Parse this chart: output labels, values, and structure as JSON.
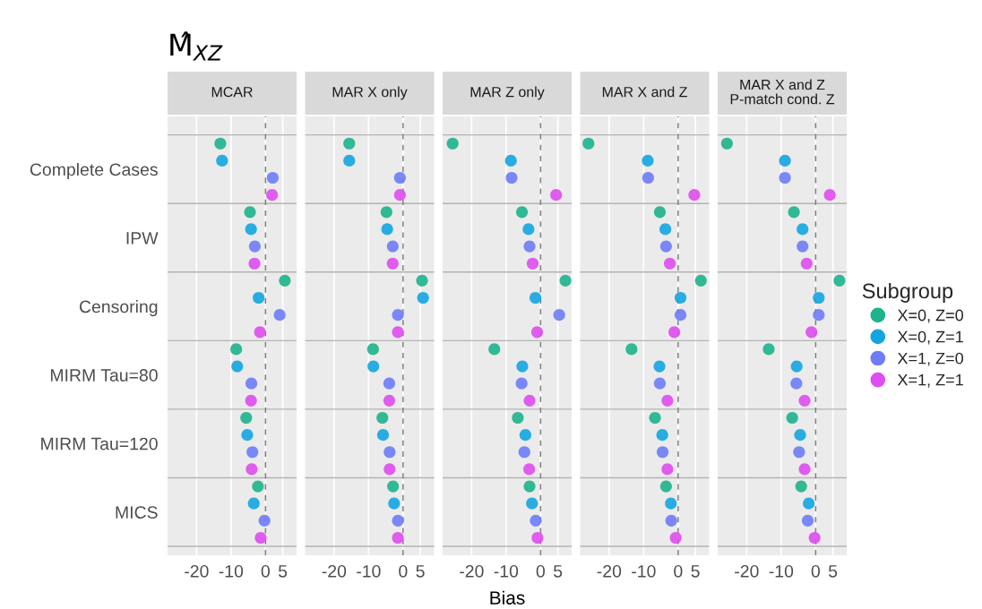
{
  "chart_data": [
    {
      "type": "scatter",
      "title": "M̂$_{XZ}$",
      "subtitle": "MCAR",
      "orientation": "horizontal",
      "categories": [
        "Complete Cases",
        "IPW",
        "Censoring",
        "MIRM Tau=80",
        "MIRM Tau=120",
        "MICS"
      ],
      "xlim": [
        -28.4,
        9
      ],
      "xticks": [
        -20,
        -10,
        0,
        5
      ],
      "grid": "x",
      "marker": "circle",
      "legend": "right",
      "legend_title": "Subgroup",
      "ref_lines": [
        {
          "axis": "x",
          "value": 0,
          "color": "#808080",
          "line_style": "dashed"
        }
      ],
      "series": [
        {
          "name": "X=0, Z=0",
          "color": "#1db38b",
          "values": [
            -13.1,
            -4.5,
            5.6,
            -8.5,
            -5.6,
            -2.2
          ]
        },
        {
          "name": "X=0, Z=1",
          "color": "#14a5e0",
          "values": [
            -12.6,
            -4.2,
            -2.0,
            -8.2,
            -5.3,
            -3.4
          ]
        },
        {
          "name": "X=1, Z=0",
          "color": "#6e7cf8",
          "values": [
            2.1,
            -3.1,
            4.1,
            -4.1,
            -3.8,
            -0.3
          ]
        },
        {
          "name": "X=1, Z=1",
          "color": "#de4df0",
          "values": [
            1.9,
            -3.2,
            -1.6,
            -4.2,
            -4.0,
            -1.4
          ]
        }
      ]
    },
    {
      "type": "scatter",
      "subtitle": "MAR X only",
      "orientation": "horizontal",
      "categories": [
        null,
        null,
        null,
        null,
        null,
        null
      ],
      "xlim": [
        -28.4,
        9
      ],
      "xticks": [
        -20,
        -10,
        0,
        5
      ],
      "grid": "x",
      "marker": "circle",
      "tick_labels": "x",
      "ref_lines": [
        {
          "axis": "x",
          "value": 0,
          "color": "#808080",
          "line_style": "dashed"
        }
      ],
      "series": [
        {
          "color": "#1db38b",
          "values": [
            -15.6,
            -4.8,
            5.5,
            -8.7,
            -6.0,
            -2.9
          ]
        },
        {
          "color": "#14a5e0",
          "values": [
            -15.6,
            -4.6,
            5.8,
            -8.6,
            -5.8,
            -2.6
          ]
        },
        {
          "color": "#6e7cf8",
          "values": [
            -0.9,
            -3.0,
            -1.5,
            -4.0,
            -3.9,
            -1.5
          ]
        },
        {
          "color": "#de4df0",
          "values": [
            -0.9,
            -3.0,
            -1.5,
            -4.0,
            -3.9,
            -1.5
          ]
        }
      ]
    },
    {
      "type": "scatter",
      "subtitle": "MAR Z only",
      "xlabel": "Bias",
      "orientation": "horizontal",
      "categories": [
        null,
        null,
        null,
        null,
        null,
        null
      ],
      "xlim": [
        -28.4,
        9
      ],
      "xticks": [
        -20,
        -10,
        0,
        5
      ],
      "grid": "x",
      "marker": "circle",
      "tick_labels": "x",
      "ref_lines": [
        {
          "axis": "x",
          "value": 0,
          "color": "#808080",
          "line_style": "dashed"
        }
      ],
      "series": [
        {
          "color": "#1db38b",
          "values": [
            -25.5,
            -5.4,
            7.2,
            -13.4,
            -6.6,
            -3.2
          ]
        },
        {
          "color": "#14a5e0",
          "values": [
            -8.6,
            -3.5,
            -1.5,
            -5.3,
            -4.4,
            -2.5
          ]
        },
        {
          "color": "#6e7cf8",
          "values": [
            -8.4,
            -3.2,
            5.4,
            -5.5,
            -4.7,
            -1.4
          ]
        },
        {
          "color": "#de4df0",
          "values": [
            4.5,
            -2.3,
            -1.0,
            -3.2,
            -3.3,
            -0.9
          ]
        }
      ]
    },
    {
      "type": "scatter",
      "subtitle": "MAR X and Z",
      "orientation": "horizontal",
      "categories": [
        null,
        null,
        null,
        null,
        null,
        null
      ],
      "xlim": [
        -28.4,
        9
      ],
      "xticks": [
        -20,
        -10,
        0,
        5
      ],
      "grid": "x",
      "marker": "circle",
      "tick_labels": "x",
      "ref_lines": [
        {
          "axis": "x",
          "value": 0,
          "color": "#808080",
          "line_style": "dashed"
        }
      ],
      "series": [
        {
          "color": "#1db38b",
          "values": [
            -26.0,
            -5.3,
            6.6,
            -13.5,
            -6.7,
            -3.5
          ]
        },
        {
          "color": "#14a5e0",
          "values": [
            -8.8,
            -3.7,
            0.7,
            -5.4,
            -4.6,
            -2.1
          ]
        },
        {
          "color": "#6e7cf8",
          "values": [
            -8.7,
            -3.5,
            0.7,
            -5.3,
            -4.5,
            -2.0
          ]
        },
        {
          "color": "#de4df0",
          "values": [
            4.7,
            -2.4,
            -1.1,
            -3.1,
            -3.1,
            -0.7
          ]
        }
      ]
    },
    {
      "type": "scatter",
      "subtitle": "MAR X and Z\nP-match cond. Z",
      "orientation": "horizontal",
      "categories": [
        null,
        null,
        null,
        null,
        null,
        null
      ],
      "xlim": [
        -28.4,
        9
      ],
      "xticks": [
        -20,
        -10,
        0,
        5
      ],
      "grid": "x",
      "marker": "circle",
      "tick_labels": "x",
      "ref_lines": [
        {
          "axis": "x",
          "value": 0,
          "color": "#808080",
          "line_style": "dashed"
        }
      ],
      "series": [
        {
          "color": "#1db38b",
          "values": [
            -25.7,
            -6.3,
            6.9,
            -13.6,
            -6.8,
            -4.2
          ]
        },
        {
          "color": "#14a5e0",
          "values": [
            -8.9,
            -3.8,
            0.9,
            -5.5,
            -4.5,
            -2.0
          ]
        },
        {
          "color": "#6e7cf8",
          "values": [
            -8.9,
            -3.8,
            0.9,
            -5.6,
            -4.8,
            -2.3
          ]
        },
        {
          "color": "#de4df0",
          "values": [
            4.1,
            -2.6,
            -1.2,
            -3.2,
            -3.2,
            -0.3
          ]
        }
      ]
    }
  ]
}
